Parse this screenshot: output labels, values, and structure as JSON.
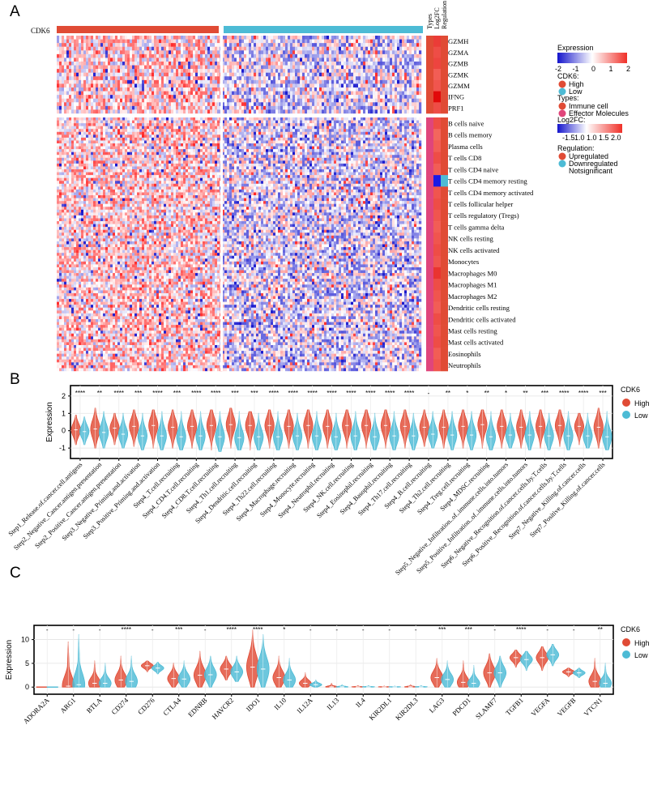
{
  "panels": {
    "a": "A",
    "b": "B",
    "c": "C"
  },
  "heatmap": {
    "gene_label": "CDK6",
    "column_headers": [
      "Types",
      "Log2FC",
      "Regulation"
    ],
    "rows": [
      {
        "name": "GZMH",
        "type": "Immune cell",
        "log2fc": 1.4,
        "regulation": "Upregulated"
      },
      {
        "name": "GZMA",
        "type": "Immune cell",
        "log2fc": 1.2,
        "regulation": "Upregulated"
      },
      {
        "name": "GZMB",
        "type": "Immune cell",
        "log2fc": 1.3,
        "regulation": "Upregulated"
      },
      {
        "name": "GZMK",
        "type": "Immune cell",
        "log2fc": 1.0,
        "regulation": "Upregulated"
      },
      {
        "name": "GZMM",
        "type": "Immune cell",
        "log2fc": 1.1,
        "regulation": "Upregulated"
      },
      {
        "name": "IFNG",
        "type": "Immune cell",
        "log2fc": 2.0,
        "regulation": "Upregulated"
      },
      {
        "name": "PRF1",
        "type": "Immune cell",
        "log2fc": 1.2,
        "regulation": "Upregulated"
      },
      {
        "name": "B cells naive",
        "type": "Effector Molecules",
        "log2fc": 1.2,
        "regulation": "Upregulated"
      },
      {
        "name": "B cells memory",
        "type": "Effector Molecules",
        "log2fc": 0.9,
        "regulation": "Upregulated"
      },
      {
        "name": "Plasma cells",
        "type": "Effector Molecules",
        "log2fc": 1.0,
        "regulation": "Upregulated"
      },
      {
        "name": "T cells CD8",
        "type": "Effector Molecules",
        "log2fc": 1.2,
        "regulation": "Upregulated"
      },
      {
        "name": "T cells CD4 naive",
        "type": "Effector Molecules",
        "log2fc": 1.0,
        "regulation": "Upregulated"
      },
      {
        "name": "T cells CD4 memory resting",
        "type": "Effector Molecules",
        "log2fc": -1.5,
        "regulation": "Downregulated"
      },
      {
        "name": "T cells CD4 memory activated",
        "type": "Effector Molecules",
        "log2fc": 1.1,
        "regulation": "Upregulated"
      },
      {
        "name": "T cells follicular helper",
        "type": "Effector Molecules",
        "log2fc": 1.2,
        "regulation": "Upregulated"
      },
      {
        "name": "T cells regulatory (Tregs)",
        "type": "Effector Molecules",
        "log2fc": 1.1,
        "regulation": "Upregulated"
      },
      {
        "name": "T cells gamma delta",
        "type": "Effector Molecules",
        "log2fc": 1.0,
        "regulation": "Upregulated"
      },
      {
        "name": "NK cells resting",
        "type": "Effector Molecules",
        "log2fc": 1.1,
        "regulation": "Upregulated"
      },
      {
        "name": "NK cells activated",
        "type": "Effector Molecules",
        "log2fc": 1.2,
        "regulation": "Upregulated"
      },
      {
        "name": "Monocytes",
        "type": "Effector Molecules",
        "log2fc": 1.1,
        "regulation": "Upregulated"
      },
      {
        "name": "Macrophages M0",
        "type": "Effector Molecules",
        "log2fc": 1.5,
        "regulation": "Upregulated"
      },
      {
        "name": "Macrophages M1",
        "type": "Effector Molecules",
        "log2fc": 1.2,
        "regulation": "Upregulated"
      },
      {
        "name": "Macrophages M2",
        "type": "Effector Molecules",
        "log2fc": 1.1,
        "regulation": "Upregulated"
      },
      {
        "name": "Dendritic cells resting",
        "type": "Effector Molecules",
        "log2fc": 1.0,
        "regulation": "Upregulated"
      },
      {
        "name": "Dendritic cells activated",
        "type": "Effector Molecules",
        "log2fc": 1.2,
        "regulation": "Upregulated"
      },
      {
        "name": "Mast cells resting",
        "type": "Effector Molecules",
        "log2fc": 1.1,
        "regulation": "Upregulated"
      },
      {
        "name": "Mast cells activated",
        "type": "Effector Molecules",
        "log2fc": 1.2,
        "regulation": "Upregulated"
      },
      {
        "name": "Eosinophils",
        "type": "Effector Molecules",
        "log2fc": 1.0,
        "regulation": "Upregulated"
      },
      {
        "name": "Neutrophils",
        "type": "Effector Molecules",
        "log2fc": 1.1,
        "regulation": "Upregulated"
      }
    ],
    "legend": {
      "expression_title": "Expression",
      "expression_ticks": [
        "-2",
        "-1",
        "0",
        "1",
        "2"
      ],
      "cdk6_title": "CDK6:",
      "cdk6_items": [
        {
          "label": "High",
          "color": "#E04B35"
        },
        {
          "label": "Low",
          "color": "#4DBBD5"
        }
      ],
      "types_title": "Types:",
      "types_items": [
        {
          "label": "Immune cell",
          "color": "#E04B35"
        },
        {
          "label": "Effector Molecules",
          "color": "#E0457B"
        }
      ],
      "log2fc_title": "Log2FC:",
      "log2fc_ticks": [
        "-1.5",
        "1.0",
        "1.0",
        "1.5",
        "2.0"
      ],
      "regulation_title": "Regulation:",
      "regulation_items": [
        {
          "label": "Upregulated",
          "color": "#E04B35"
        },
        {
          "label": "Downregulated",
          "color": "#4DBBD5"
        },
        {
          "label": "Notsignificant",
          "color": null
        }
      ]
    }
  },
  "chart_data": [
    {
      "type": "violin",
      "panel": "B",
      "ylabel": "Expression",
      "ylim": [
        -1.6,
        2.6
      ],
      "yticks": [
        -1,
        0,
        1,
        2
      ],
      "legend_title": "CDK6",
      "legend_items": [
        {
          "label": "High",
          "color": "#E04B35"
        },
        {
          "label": "Low",
          "color": "#4DBBD5"
        }
      ],
      "categories": [
        "Step1_Release.of.cancer.cell.antigens",
        "Step2_Negative_Cancer.antigen.presentation",
        "Step2_Positive_Cancer.antigen.presentation",
        "Step3_Negative_Priming.and.activation",
        "Step3_Positive_Priming.and.activation",
        "Step4_T.cell.recruiting",
        "Step4_CD4.T.cell.recruiting",
        "Step4_CD8.T.cell.recruiting",
        "Step4_Th1.cell.recruiting",
        "Step4_Dendritic.cell.recruiting",
        "Step4_Th22.cell.recruiting",
        "Step4_Macrophage.recruiting",
        "Step4_Monocyte.recruiting",
        "Step4_Neutrophil.recruiting",
        "Step4_NK.cell.recruiting",
        "Step4_Eosinophil.recruiting",
        "Step4_Basophil.recruiting",
        "Step4_Th17.cell.recruiting",
        "Step4_B.cell.recruiting",
        "Step4_Th2.cell.recruiting",
        "Step4_Treg.cell.recruiting",
        "Step4_MDSC.recruiting",
        "Step5_Negative_Infiltration..of..immune.cells.into.tumors",
        "Step5_Positive_Infiltration..of..immune.cells.into.tumors",
        "Step6_Negative_Recognition.of.cancer.cells.by.T.cells",
        "Step6_Positive_Recognition.of.cancer.cells.by.T.cells",
        "Step7_Negative_Killing.of.cancer.cells",
        "Step7_Positive_Killing.of.cancer.cells"
      ],
      "significance": [
        "****",
        "**",
        "****",
        "***",
        "****",
        "***",
        "****",
        "****",
        "***",
        "***",
        "****",
        "****",
        "****",
        "****",
        "****",
        "****",
        "****",
        "****",
        "-",
        "**",
        "*",
        "**",
        "*",
        "**",
        "***",
        "****",
        "****",
        "***"
      ],
      "series": [
        {
          "name": "High",
          "median": [
            0.05,
            0.1,
            0.15,
            0.25,
            0.3,
            0.2,
            0.25,
            0.3,
            0.35,
            0.3,
            0.3,
            0.25,
            0.3,
            0.25,
            0.3,
            0.3,
            0.3,
            0.25,
            0.2,
            0.2,
            0.25,
            0.35,
            0.25,
            0.2,
            0.25,
            0.3,
            0.25,
            0.2
          ],
          "min": [
            -0.8,
            -1.0,
            -0.8,
            -0.9,
            -1.0,
            -1.0,
            -1.0,
            -1.1,
            -1.0,
            -1.1,
            -1.0,
            -1.0,
            -1.0,
            -1.0,
            -1.0,
            -1.0,
            -1.0,
            -1.0,
            -0.9,
            -1.0,
            -1.0,
            -1.0,
            -1.0,
            -1.0,
            -1.0,
            -0.9,
            -0.8,
            -1.0
          ],
          "max": [
            0.9,
            1.3,
            1.0,
            1.2,
            1.2,
            1.2,
            1.2,
            1.2,
            1.3,
            1.1,
            1.2,
            1.2,
            1.2,
            1.2,
            1.2,
            1.2,
            1.2,
            1.2,
            1.2,
            1.2,
            1.2,
            1.2,
            1.2,
            1.2,
            1.2,
            1.2,
            1.0,
            1.3
          ]
        },
        {
          "name": "Low",
          "median": [
            -0.05,
            -0.1,
            -0.2,
            -0.3,
            -0.3,
            -0.35,
            -0.3,
            -0.35,
            -0.4,
            -0.35,
            -0.35,
            -0.3,
            -0.3,
            -0.35,
            -0.3,
            -0.35,
            -0.3,
            -0.3,
            -0.2,
            -0.25,
            -0.25,
            -0.35,
            -0.25,
            -0.25,
            -0.3,
            -0.3,
            -0.3,
            -0.35
          ],
          "min": [
            -0.8,
            -1.0,
            -1.0,
            -1.1,
            -1.1,
            -1.1,
            -1.1,
            -1.2,
            -1.1,
            -1.1,
            -1.1,
            -1.1,
            -1.1,
            -1.1,
            -1.1,
            -1.1,
            -1.1,
            -1.1,
            -1.0,
            -1.1,
            -1.1,
            -1.1,
            -1.0,
            -1.1,
            -1.1,
            -1.1,
            -1.0,
            -1.1
          ],
          "max": [
            0.8,
            1.1,
            1.0,
            1.0,
            1.1,
            1.1,
            1.1,
            1.1,
            1.1,
            1.0,
            1.1,
            1.0,
            1.1,
            1.0,
            1.1,
            1.0,
            1.1,
            1.0,
            1.1,
            1.1,
            1.1,
            1.1,
            1.0,
            1.1,
            1.0,
            1.1,
            1.0,
            1.1
          ]
        }
      ]
    },
    {
      "type": "violin",
      "panel": "C",
      "ylabel": "Expression",
      "ylim": [
        -1.5,
        13
      ],
      "yticks": [
        0,
        5,
        10
      ],
      "legend_title": "CDK6",
      "legend_items": [
        {
          "label": "High",
          "color": "#E04B35"
        },
        {
          "label": "Low",
          "color": "#4DBBD5"
        }
      ],
      "categories": [
        "ADORA2A",
        "ARG1",
        "BTLA",
        "CD274",
        "CD276",
        "CTLA4",
        "EDNRB",
        "HAVCR2",
        "IDO1",
        "IL10",
        "IL12A",
        "IL13",
        "IL4",
        "KIR2DL1",
        "KIR2DL3",
        "LAG3",
        "PDCD1",
        "SLAMF7",
        "TGFB1",
        "VEGFA",
        "VEGFB",
        "VTCN1"
      ],
      "significance": [
        "-",
        "-",
        "-",
        "****",
        "-",
        "***",
        "-",
        "****",
        "****",
        "*",
        "-",
        "-",
        "-",
        "-",
        "-",
        "***",
        "***",
        "-",
        "****",
        "-",
        "-",
        "**"
      ],
      "series": [
        {
          "name": "High",
          "median": [
            0,
            0.2,
            0.8,
            1.5,
            4.5,
            1.8,
            2.5,
            3.8,
            4.2,
            2.0,
            0.8,
            0.05,
            0.05,
            0.05,
            0.05,
            2.0,
            1.0,
            3.0,
            6.2,
            6.2,
            3.2,
            1.2
          ],
          "min": [
            0,
            0,
            0,
            0,
            3.2,
            0,
            0,
            1.5,
            0,
            0,
            0,
            0,
            0,
            0,
            0,
            0,
            0,
            0,
            4.2,
            3.5,
            2.2,
            0
          ],
          "max": [
            0,
            9.5,
            5.5,
            6.5,
            5.5,
            5.0,
            7.5,
            6.5,
            12,
            6.5,
            3.0,
            0.8,
            0.3,
            0.2,
            0.5,
            6.0,
            5.5,
            7.0,
            7.8,
            8.5,
            4.0,
            6.0
          ]
        },
        {
          "name": "Low",
          "median": [
            0,
            0.5,
            0.8,
            1.2,
            4.0,
            1.7,
            2.6,
            3.2,
            3.8,
            1.5,
            0.5,
            0.05,
            0.05,
            0.05,
            0.05,
            1.6,
            0.8,
            3.0,
            5.8,
            6.8,
            3.0,
            0.8
          ],
          "min": [
            0,
            0,
            0,
            0,
            2.8,
            0,
            0,
            1.2,
            0,
            0,
            0,
            0,
            0,
            0,
            0,
            0,
            0,
            0,
            3.5,
            4.5,
            2.0,
            0
          ],
          "max": [
            0,
            11,
            5.0,
            6.5,
            5.2,
            5.5,
            6.5,
            6.5,
            11,
            6.0,
            1.5,
            0.5,
            0.3,
            0.2,
            0.3,
            5.5,
            4.5,
            6.5,
            7.5,
            9.0,
            4.0,
            5.0
          ]
        }
      ]
    }
  ]
}
